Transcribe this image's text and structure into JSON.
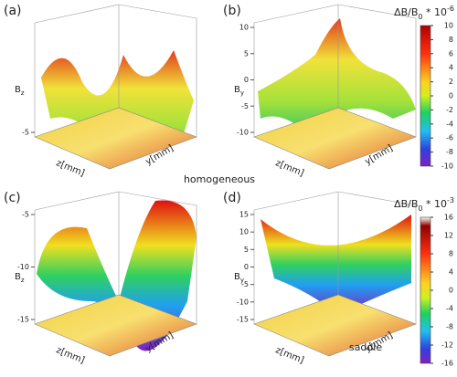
{
  "panels": [
    {
      "label": "(a)",
      "z_label": "B",
      "z_sub": "z",
      "x_label": "z[mm]",
      "y_label": "y[mm]",
      "zticks": [
        -5
      ]
    },
    {
      "label": "(b)",
      "z_label": "B",
      "z_sub": "y",
      "x_label": "z[mm]",
      "y_label": "y[mm]",
      "zticks": [
        10,
        5,
        0,
        -5,
        -10
      ]
    },
    {
      "label": "(c)",
      "z_label": "B",
      "z_sub": "z",
      "x_label": "z[mm]",
      "y_label": "y[mm]",
      "zticks": [
        -5,
        -10,
        -15
      ]
    },
    {
      "label": "(d)",
      "z_label": "B",
      "z_sub": "y",
      "x_label": "z[mm]",
      "y_label": "y[mm]",
      "zticks": [
        15,
        10,
        5,
        0,
        -5,
        -10,
        -15
      ]
    }
  ],
  "captions": [
    "homogeneous",
    "saddle"
  ],
  "colorbars": [
    {
      "title": "ΔB/B",
      "sub": "0",
      "mid": " * 10",
      "sup": "-6",
      "ticks": [
        10,
        8,
        6,
        4,
        2,
        0,
        -2,
        -4,
        -6,
        -8,
        -10
      ]
    },
    {
      "title": "ΔB/B",
      "sub": "0",
      "mid": " * 10",
      "sup": "-3",
      "ticks": [
        16,
        12,
        8,
        4,
        0,
        -4,
        -8,
        -12,
        -16
      ]
    }
  ]
}
